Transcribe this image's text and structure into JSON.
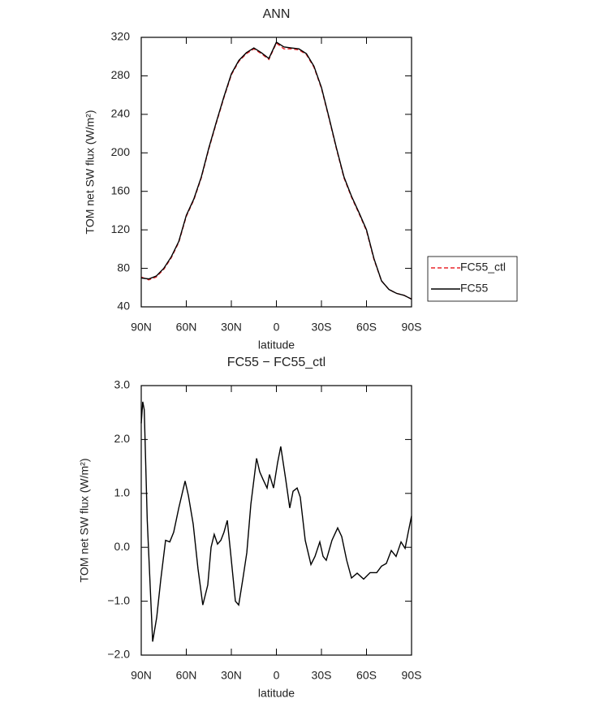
{
  "chart_data": [
    {
      "type": "line",
      "title": "ANN",
      "xlabel": "latitude",
      "ylabel": "TOM net SW flux (W/m²)",
      "xlim": [
        90,
        -90
      ],
      "xticks": [
        {
          "value": 90,
          "label": "90N"
        },
        {
          "value": 60,
          "label": "60N"
        },
        {
          "value": 30,
          "label": "30N"
        },
        0,
        {
          "value": -30,
          "label": "30S"
        },
        {
          "value": -60,
          "label": "60S"
        },
        {
          "value": -90,
          "label": "90S"
        }
      ],
      "ylim": [
        40,
        320
      ],
      "yticks": [
        40,
        80,
        120,
        160,
        200,
        240,
        280,
        320
      ],
      "legend": "right",
      "x": [
        90,
        85,
        80,
        75,
        70,
        65,
        60,
        55,
        50,
        45,
        40,
        35,
        30,
        25,
        20,
        15,
        10,
        5,
        0,
        -5,
        -10,
        -15,
        -20,
        -25,
        -30,
        -35,
        -40,
        -45,
        -50,
        -55,
        -60,
        -65,
        -70,
        -75,
        -80,
        -85,
        -90
      ],
      "series": [
        {
          "name": "FC55_ctl",
          "color": "#e8262b",
          "line_style": "dashed",
          "values": [
            71,
            68,
            71,
            79,
            91,
            107,
            134,
            151,
            174,
            204,
            231,
            257,
            281,
            295,
            303,
            308,
            303,
            297,
            314,
            308,
            308,
            307,
            302,
            289,
            267,
            236,
            204,
            174,
            154,
            137,
            119,
            89,
            67,
            58,
            54,
            52,
            48
          ]
        },
        {
          "name": "FC55",
          "color": "#000000",
          "line_style": "solid",
          "values": [
            70,
            69,
            72,
            80,
            92,
            108,
            135,
            152,
            175,
            205,
            232,
            258,
            282,
            296,
            304,
            309,
            304,
            298,
            315,
            310,
            309,
            308,
            303,
            290,
            268,
            237,
            205,
            175,
            155,
            138,
            120,
            90,
            67,
            58,
            54,
            52,
            48
          ]
        }
      ]
    },
    {
      "type": "line",
      "title": "FC55 − FC55_ctl",
      "xlabel": "latitude",
      "ylabel": "TOM net SW flux (W/m²)",
      "xlim": [
        90,
        -90
      ],
      "xticks": [
        {
          "value": 90,
          "label": "90N"
        },
        {
          "value": 60,
          "label": "60N"
        },
        {
          "value": 30,
          "label": "30N"
        },
        0,
        {
          "value": -30,
          "label": "30S"
        },
        {
          "value": -60,
          "label": "60S"
        },
        {
          "value": -90,
          "label": "90S"
        }
      ],
      "ylim": [
        -2,
        3
      ],
      "yticks": [
        {
          "value": -2,
          "label": "−2.0"
        },
        {
          "value": -1,
          "label": "−1.0"
        },
        {
          "value": 0,
          "label": "0.0"
        },
        {
          "value": 1,
          "label": "1.0"
        },
        {
          "value": 2,
          "label": "2.0"
        },
        {
          "value": 3,
          "label": "3.0"
        }
      ],
      "x": [
        90,
        89,
        88,
        86,
        82.4,
        79.7,
        77,
        73.8,
        71,
        68.4,
        65,
        60.8,
        58.6,
        55.4,
        52.2,
        49,
        45.7,
        43.5,
        41.4,
        39.2,
        37,
        34.9,
        32.7,
        30.5,
        27.3,
        25.1,
        22.4,
        19.7,
        17,
        13.2,
        11.1,
        8.9,
        6.2,
        4.6,
        1.9,
        -0.8,
        -2.9,
        -6.2,
        -8.9,
        -11.1,
        -13.8,
        -15.9,
        -19.2,
        -23,
        -25.7,
        -28.9,
        -31.1,
        -33.2,
        -37,
        -40.8,
        -43.5,
        -46.8,
        -50,
        -53.8,
        -58.1,
        -62.4,
        -66.8,
        -70,
        -73.2,
        -76.5,
        -79.7,
        -83,
        -85.7,
        -87.8,
        -90
      ],
      "series": [
        {
          "name": "FC55 − FC55_ctl",
          "color": "#000000",
          "line_style": "solid",
          "values": [
            2.3,
            2.7,
            2.55,
            0.5,
            -1.75,
            -1.3,
            -0.6,
            0.13,
            0.1,
            0.28,
            0.73,
            1.23,
            0.96,
            0.43,
            -0.4,
            -1.07,
            -0.7,
            0,
            0.24,
            0.06,
            0.13,
            0.28,
            0.5,
            -0.1,
            -1.0,
            -1.07,
            -0.6,
            -0.1,
            0.8,
            1.65,
            1.4,
            1.26,
            1.1,
            1.35,
            1.1,
            1.57,
            1.87,
            1.26,
            0.73,
            1.04,
            1.1,
            0.93,
            0.13,
            -0.32,
            -0.17,
            0.1,
            -0.17,
            -0.24,
            0.13,
            0.36,
            0.2,
            -0.24,
            -0.57,
            -0.48,
            -0.59,
            -0.47,
            -0.47,
            -0.35,
            -0.3,
            -0.06,
            -0.17,
            0.1,
            -0.02,
            0.28,
            0.58
          ]
        }
      ]
    }
  ]
}
